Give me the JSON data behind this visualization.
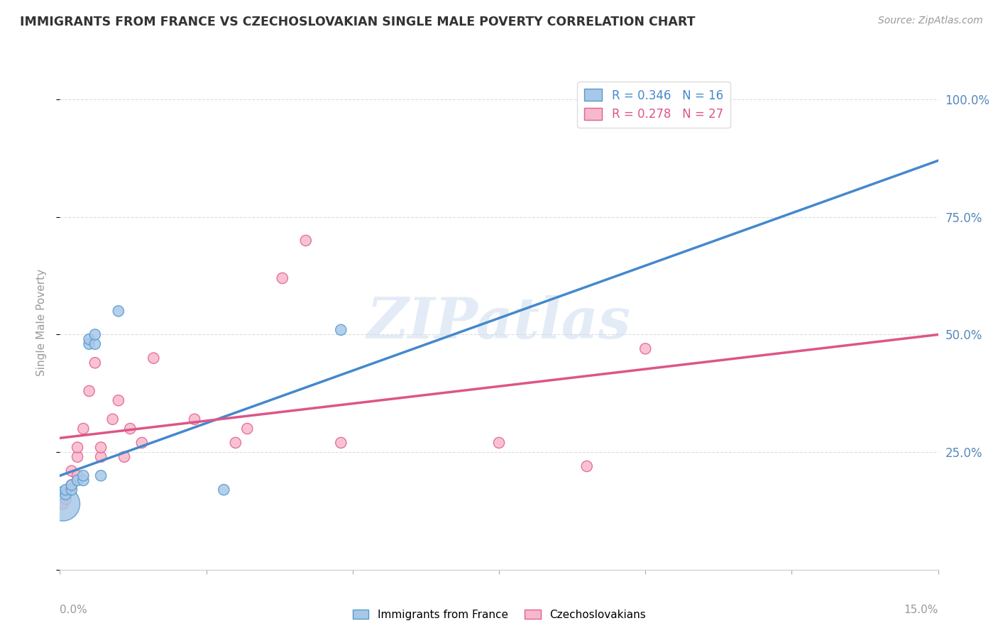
{
  "title": "IMMIGRANTS FROM FRANCE VS CZECHOSLOVAKIAN SINGLE MALE POVERTY CORRELATION CHART",
  "source": "Source: ZipAtlas.com",
  "ylabel": "Single Male Poverty",
  "ytick_positions": [
    0.0,
    0.25,
    0.5,
    0.75,
    1.0
  ],
  "ytick_labels": [
    "",
    "25.0%",
    "50.0%",
    "75.0%",
    "100.0%"
  ],
  "blue_color": "#a8c8e8",
  "pink_color": "#f8b8cc",
  "blue_edge_color": "#5599cc",
  "pink_edge_color": "#e06090",
  "blue_line_color": "#4488cc",
  "pink_line_color": "#dd5588",
  "watermark_text": "ZIPatlas",
  "france_x": [
    0.0005,
    0.001,
    0.001,
    0.002,
    0.002,
    0.003,
    0.004,
    0.004,
    0.005,
    0.005,
    0.006,
    0.006,
    0.007,
    0.01,
    0.028,
    0.048
  ],
  "france_y": [
    0.14,
    0.16,
    0.17,
    0.17,
    0.18,
    0.19,
    0.19,
    0.2,
    0.48,
    0.49,
    0.48,
    0.5,
    0.2,
    0.55,
    0.17,
    0.51
  ],
  "france_sizes": [
    1200,
    120,
    120,
    120,
    120,
    120,
    120,
    120,
    120,
    120,
    120,
    120,
    120,
    120,
    120,
    120
  ],
  "czech_x": [
    0.0005,
    0.001,
    0.002,
    0.002,
    0.003,
    0.003,
    0.003,
    0.004,
    0.005,
    0.006,
    0.007,
    0.007,
    0.009,
    0.01,
    0.011,
    0.012,
    0.014,
    0.016,
    0.023,
    0.03,
    0.032,
    0.038,
    0.042,
    0.048,
    0.075,
    0.09,
    0.1
  ],
  "czech_y": [
    0.14,
    0.15,
    0.18,
    0.21,
    0.2,
    0.24,
    0.26,
    0.3,
    0.38,
    0.44,
    0.24,
    0.26,
    0.32,
    0.36,
    0.24,
    0.3,
    0.27,
    0.45,
    0.32,
    0.27,
    0.3,
    0.62,
    0.7,
    0.27,
    0.27,
    0.22,
    0.47
  ],
  "czech_sizes": [
    120,
    120,
    120,
    120,
    120,
    120,
    120,
    120,
    120,
    120,
    120,
    120,
    120,
    120,
    120,
    120,
    120,
    120,
    120,
    120,
    120,
    120,
    120,
    120,
    120,
    120,
    120
  ],
  "xlim": [
    0.0,
    0.15
  ],
  "ylim": [
    0.0,
    1.05
  ],
  "france_R": 0.346,
  "france_N": 16,
  "czech_R": 0.278,
  "czech_N": 27,
  "blue_line_x0": 0.0,
  "blue_line_y0": 0.2,
  "blue_line_x1": 0.15,
  "blue_line_y1": 0.87,
  "pink_line_x0": 0.0,
  "pink_line_y0": 0.28,
  "pink_line_x1": 0.15,
  "pink_line_y1": 0.5,
  "tick_color": "#5588bb",
  "axis_label_color": "#999999",
  "grid_color": "#dddddd",
  "title_color": "#333333",
  "source_color": "#999999"
}
